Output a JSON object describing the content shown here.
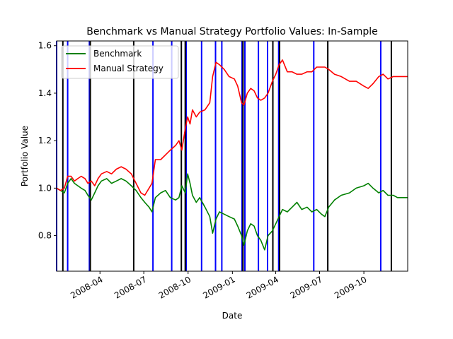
{
  "chart_data": {
    "type": "line",
    "title": "Benchmark vs Manual Strategy Portfolio Values: In-Sample",
    "xlabel": "Date",
    "ylabel": "Portfolio Value",
    "xlim": [
      "2008-01-02",
      "2009-12-31"
    ],
    "ylim": [
      0.65,
      1.62
    ],
    "x_ticks": [
      "2008-04",
      "2008-07",
      "2008-10",
      "2009-01",
      "2009-04",
      "2009-07",
      "2009-10"
    ],
    "y_ticks": [
      0.8,
      1.0,
      1.2,
      1.4,
      1.6
    ],
    "grid": false,
    "legend_position": "top-left",
    "series": [
      {
        "name": "Benchmark",
        "color": "#008000",
        "points": [
          [
            "2008-01-02",
            1.0
          ],
          [
            "2008-01-10",
            0.99
          ],
          [
            "2008-01-18",
            0.98
          ],
          [
            "2008-01-25",
            1.02
          ],
          [
            "2008-02-01",
            1.04
          ],
          [
            "2008-02-08",
            1.02
          ],
          [
            "2008-02-15",
            1.01
          ],
          [
            "2008-02-22",
            1.0
          ],
          [
            "2008-03-01",
            0.99
          ],
          [
            "2008-03-07",
            0.97
          ],
          [
            "2008-03-14",
            0.95
          ],
          [
            "2008-03-21",
            0.98
          ],
          [
            "2008-03-28",
            1.01
          ],
          [
            "2008-04-04",
            1.03
          ],
          [
            "2008-04-15",
            1.04
          ],
          [
            "2008-04-25",
            1.02
          ],
          [
            "2008-05-05",
            1.03
          ],
          [
            "2008-05-15",
            1.04
          ],
          [
            "2008-05-25",
            1.03
          ],
          [
            "2008-06-05",
            1.01
          ],
          [
            "2008-06-15",
            0.99
          ],
          [
            "2008-06-25",
            0.96
          ],
          [
            "2008-07-03",
            0.94
          ],
          [
            "2008-07-12",
            0.92
          ],
          [
            "2008-07-18",
            0.9
          ],
          [
            "2008-07-25",
            0.96
          ],
          [
            "2008-08-05",
            0.98
          ],
          [
            "2008-08-15",
            0.99
          ],
          [
            "2008-08-25",
            0.96
          ],
          [
            "2008-09-05",
            0.95
          ],
          [
            "2008-09-12",
            0.96
          ],
          [
            "2008-09-18",
            1.01
          ],
          [
            "2008-09-25",
            0.98
          ],
          [
            "2008-09-30",
            1.06
          ],
          [
            "2008-10-05",
            1.02
          ],
          [
            "2008-10-10",
            0.97
          ],
          [
            "2008-10-18",
            0.94
          ],
          [
            "2008-10-25",
            0.96
          ],
          [
            "2008-11-05",
            0.92
          ],
          [
            "2008-11-15",
            0.88
          ],
          [
            "2008-11-21",
            0.81
          ],
          [
            "2008-11-28",
            0.87
          ],
          [
            "2008-12-05",
            0.9
          ],
          [
            "2008-12-15",
            0.89
          ],
          [
            "2008-12-25",
            0.88
          ],
          [
            "2009-01-05",
            0.87
          ],
          [
            "2009-01-12",
            0.84
          ],
          [
            "2009-01-20",
            0.8
          ],
          [
            "2009-01-25",
            0.76
          ],
          [
            "2009-02-01",
            0.82
          ],
          [
            "2009-02-08",
            0.85
          ],
          [
            "2009-02-15",
            0.84
          ],
          [
            "2009-02-22",
            0.8
          ],
          [
            "2009-03-01",
            0.78
          ],
          [
            "2009-03-09",
            0.74
          ],
          [
            "2009-03-16",
            0.8
          ],
          [
            "2009-03-25",
            0.82
          ],
          [
            "2009-04-01",
            0.85
          ],
          [
            "2009-04-08",
            0.88
          ],
          [
            "2009-04-15",
            0.91
          ],
          [
            "2009-04-25",
            0.9
          ],
          [
            "2009-05-05",
            0.92
          ],
          [
            "2009-05-15",
            0.94
          ],
          [
            "2009-05-25",
            0.91
          ],
          [
            "2009-06-05",
            0.92
          ],
          [
            "2009-06-15",
            0.9
          ],
          [
            "2009-06-25",
            0.91
          ],
          [
            "2009-07-05",
            0.89
          ],
          [
            "2009-07-12",
            0.88
          ],
          [
            "2009-07-20",
            0.92
          ],
          [
            "2009-08-01",
            0.95
          ],
          [
            "2009-08-15",
            0.97
          ],
          [
            "2009-09-01",
            0.98
          ],
          [
            "2009-09-15",
            1.0
          ],
          [
            "2009-10-01",
            1.01
          ],
          [
            "2009-10-10",
            1.02
          ],
          [
            "2009-10-20",
            1.0
          ],
          [
            "2009-11-01",
            0.98
          ],
          [
            "2009-11-10",
            0.99
          ],
          [
            "2009-11-20",
            0.97
          ],
          [
            "2009-12-01",
            0.97
          ],
          [
            "2009-12-10",
            0.96
          ],
          [
            "2009-12-20",
            0.96
          ],
          [
            "2009-12-31",
            0.96
          ]
        ]
      },
      {
        "name": "Manual Strategy",
        "color": "#ff0000",
        "points": [
          [
            "2008-01-02",
            1.0
          ],
          [
            "2008-01-10",
            0.99
          ],
          [
            "2008-01-18",
            1.0
          ],
          [
            "2008-01-25",
            1.05
          ],
          [
            "2008-02-01",
            1.05
          ],
          [
            "2008-02-08",
            1.03
          ],
          [
            "2008-02-15",
            1.04
          ],
          [
            "2008-02-22",
            1.05
          ],
          [
            "2008-03-01",
            1.04
          ],
          [
            "2008-03-07",
            1.02
          ],
          [
            "2008-03-14",
            1.03
          ],
          [
            "2008-03-21",
            1.01
          ],
          [
            "2008-03-28",
            1.04
          ],
          [
            "2008-04-04",
            1.06
          ],
          [
            "2008-04-15",
            1.07
          ],
          [
            "2008-04-25",
            1.06
          ],
          [
            "2008-05-05",
            1.08
          ],
          [
            "2008-05-15",
            1.09
          ],
          [
            "2008-05-25",
            1.08
          ],
          [
            "2008-06-05",
            1.06
          ],
          [
            "2008-06-15",
            1.02
          ],
          [
            "2008-06-25",
            0.98
          ],
          [
            "2008-07-03",
            0.97
          ],
          [
            "2008-07-12",
            1.0
          ],
          [
            "2008-07-18",
            1.02
          ],
          [
            "2008-07-25",
            1.12
          ],
          [
            "2008-08-05",
            1.12
          ],
          [
            "2008-08-15",
            1.14
          ],
          [
            "2008-08-25",
            1.16
          ],
          [
            "2008-09-05",
            1.18
          ],
          [
            "2008-09-12",
            1.2
          ],
          [
            "2008-09-18",
            1.16
          ],
          [
            "2008-09-25",
            1.25
          ],
          [
            "2008-09-30",
            1.3
          ],
          [
            "2008-10-05",
            1.27
          ],
          [
            "2008-10-10",
            1.33
          ],
          [
            "2008-10-18",
            1.3
          ],
          [
            "2008-10-25",
            1.32
          ],
          [
            "2008-11-05",
            1.33
          ],
          [
            "2008-11-15",
            1.36
          ],
          [
            "2008-11-21",
            1.47
          ],
          [
            "2008-11-28",
            1.53
          ],
          [
            "2008-12-05",
            1.52
          ],
          [
            "2008-12-15",
            1.5
          ],
          [
            "2008-12-25",
            1.47
          ],
          [
            "2009-01-05",
            1.46
          ],
          [
            "2009-01-12",
            1.43
          ],
          [
            "2009-01-20",
            1.36
          ],
          [
            "2009-01-25",
            1.35
          ],
          [
            "2009-02-01",
            1.4
          ],
          [
            "2009-02-08",
            1.42
          ],
          [
            "2009-02-15",
            1.41
          ],
          [
            "2009-02-22",
            1.38
          ],
          [
            "2009-03-01",
            1.37
          ],
          [
            "2009-03-09",
            1.38
          ],
          [
            "2009-03-16",
            1.4
          ],
          [
            "2009-03-25",
            1.45
          ],
          [
            "2009-04-01",
            1.48
          ],
          [
            "2009-04-08",
            1.52
          ],
          [
            "2009-04-15",
            1.54
          ],
          [
            "2009-04-25",
            1.49
          ],
          [
            "2009-05-05",
            1.49
          ],
          [
            "2009-05-15",
            1.48
          ],
          [
            "2009-05-25",
            1.48
          ],
          [
            "2009-06-05",
            1.49
          ],
          [
            "2009-06-15",
            1.49
          ],
          [
            "2009-06-25",
            1.51
          ],
          [
            "2009-07-05",
            1.51
          ],
          [
            "2009-07-12",
            1.51
          ],
          [
            "2009-07-20",
            1.5
          ],
          [
            "2009-08-01",
            1.48
          ],
          [
            "2009-08-15",
            1.47
          ],
          [
            "2009-09-01",
            1.45
          ],
          [
            "2009-09-15",
            1.45
          ],
          [
            "2009-10-01",
            1.43
          ],
          [
            "2009-10-10",
            1.42
          ],
          [
            "2009-10-20",
            1.44
          ],
          [
            "2009-11-01",
            1.47
          ],
          [
            "2009-11-10",
            1.48
          ],
          [
            "2009-11-20",
            1.46
          ],
          [
            "2009-12-01",
            1.47
          ],
          [
            "2009-12-10",
            1.47
          ],
          [
            "2009-12-20",
            1.47
          ],
          [
            "2009-12-31",
            1.47
          ]
        ]
      }
    ],
    "vertical_lines": [
      {
        "color": "#0000ff",
        "dates": [
          "2008-01-02",
          "2008-01-25",
          "2008-03-10",
          "2008-07-20",
          "2008-08-28",
          "2008-09-27",
          "2008-10-29",
          "2008-11-27",
          "2008-12-10",
          "2009-01-21",
          "2009-01-27",
          "2009-02-24",
          "2009-03-15",
          "2009-04-07",
          "2009-06-19",
          "2009-11-05"
        ]
      },
      {
        "color": "#000000",
        "dates": [
          "2008-01-15",
          "2008-03-12",
          "2008-06-10",
          "2008-09-17",
          "2008-09-25",
          "2009-01-23",
          "2009-03-26",
          "2009-04-09",
          "2009-07-18",
          "2009-11-27"
        ]
      }
    ]
  }
}
